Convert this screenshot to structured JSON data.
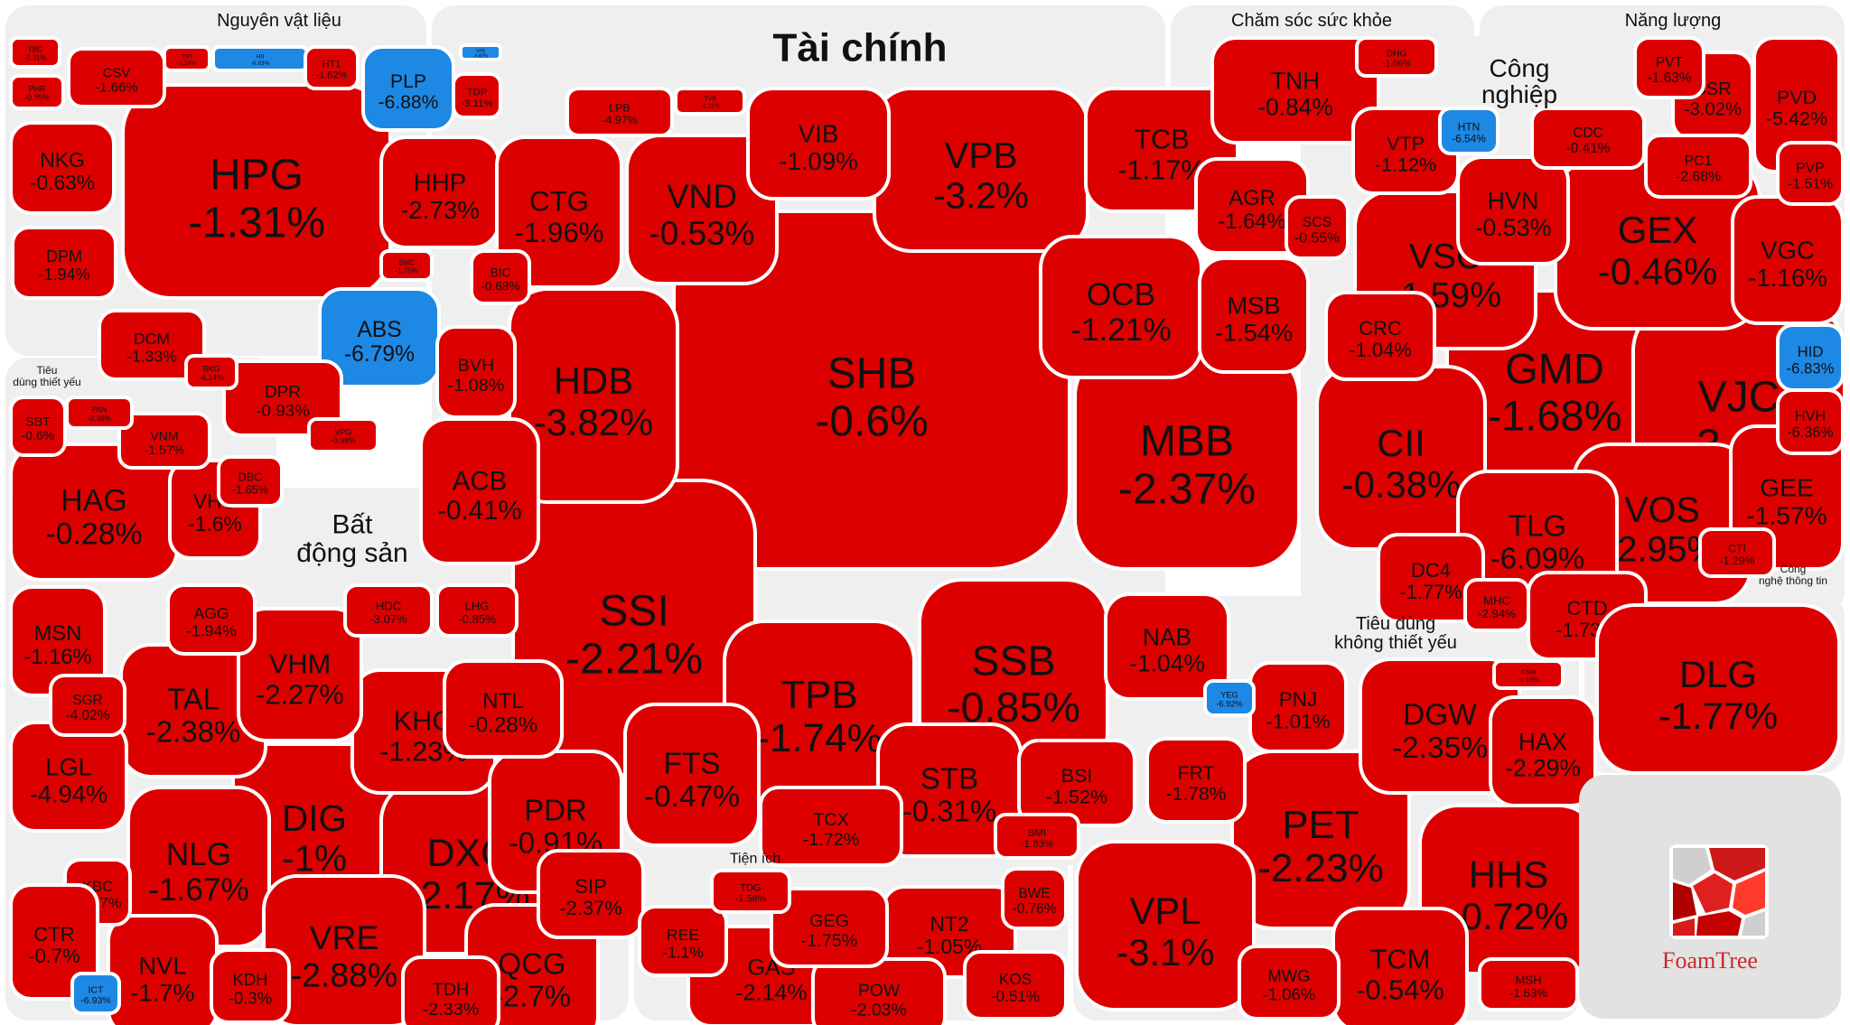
{
  "chart_data": {
    "type": "treemap",
    "colors": {
      "down": "#dd0000",
      "limit_down": "#1e88e5",
      "border": "#ffffff",
      "group_bg": "#efefef"
    },
    "groups": [
      {
        "name": "Nguyên vật liệu",
        "items": [
          [
            "HPG",
            -1.31
          ],
          [
            "ABS",
            -6.79
          ],
          [
            "PLP",
            -6.88
          ],
          [
            "HII",
            -6.93
          ],
          [
            "VPS",
            -6.82
          ],
          [
            "CSV",
            -1.66
          ],
          [
            "NKG",
            -0.63
          ],
          [
            "DPM",
            -1.94
          ],
          [
            "HHP",
            -2.73
          ],
          [
            "DCM",
            -1.33
          ],
          [
            "DPR",
            -0.93
          ],
          [
            "PHR",
            -0.35
          ],
          [
            "HT1",
            -1.62
          ],
          [
            "TDP",
            -3.11
          ],
          [
            "BKG",
            -4.14
          ],
          [
            "SMC",
            -1.75
          ],
          [
            "VPG",
            -0.98
          ],
          [
            "TNT",
            -1.24
          ],
          [
            "TBC",
            -0.31
          ]
        ]
      },
      {
        "name": "Tài chính",
        "items": [
          [
            "SHB",
            -0.6
          ],
          [
            "MBB",
            -2.37
          ],
          [
            "SSI",
            -2.21
          ],
          [
            "VPB",
            -3.2
          ],
          [
            "HDB",
            -3.82
          ],
          [
            "SSB",
            -0.85
          ],
          [
            "OCB",
            -1.21
          ],
          [
            "TPB",
            -1.74
          ],
          [
            "VND",
            -0.53
          ],
          [
            "STB",
            -0.31
          ],
          [
            "CTG",
            -1.96
          ],
          [
            "ACB",
            -0.41
          ],
          [
            "TCB",
            -1.17
          ],
          [
            "VIB",
            -1.09
          ],
          [
            "FTS",
            -0.47
          ],
          [
            "MSB",
            -1.54
          ],
          [
            "AGR",
            -1.64
          ],
          [
            "NAB",
            -1.04
          ],
          [
            "TCX",
            -1.72
          ],
          [
            "LPB",
            -4.97
          ],
          [
            "BSI",
            -1.52
          ],
          [
            "BVH",
            -1.08
          ],
          [
            "BMI",
            -1.83
          ],
          [
            "BIC",
            -0.68
          ],
          [
            "TVB",
            -4.11
          ]
        ]
      },
      {
        "name": "Chăm sóc sức khỏe",
        "items": [
          [
            "TNH",
            -0.84
          ],
          [
            "DHG",
            -1.06
          ]
        ]
      },
      {
        "name": "Năng lượng",
        "items": [
          [
            "PVD",
            -5.42
          ],
          [
            "BSR",
            -3.02
          ],
          [
            "PVT",
            -1.63
          ]
        ]
      },
      {
        "name": "Công nghiệp",
        "items": [
          [
            "GMD",
            -1.68
          ],
          [
            "VJC",
            -3.1
          ],
          [
            "GEX",
            -0.46
          ],
          [
            "VOS",
            -2.95
          ],
          [
            "VSC",
            -1.59
          ],
          [
            "VGC",
            -1.16
          ],
          [
            "CII",
            -0.38
          ],
          [
            "TLG",
            -6.09
          ],
          [
            "GEE",
            -1.57
          ],
          [
            "HVN",
            -0.53
          ],
          [
            "VTP",
            -1.12
          ],
          [
            "CRC",
            -1.04
          ],
          [
            "CTD",
            -1.73
          ],
          [
            "DC4",
            -1.77
          ],
          [
            "CDC",
            -0.41
          ],
          [
            "PC1",
            -2.68
          ],
          [
            "HID",
            -6.83
          ],
          [
            "CTI",
            -1.29
          ],
          [
            "SCS",
            -0.55
          ],
          [
            "HVH",
            -6.36
          ],
          [
            "HTN",
            -6.54
          ],
          [
            "PVP",
            -1.51
          ],
          [
            "MHC",
            -2.94
          ]
        ]
      },
      {
        "name": "Tiêu dùng thiết yếu",
        "items": [
          [
            "HAG",
            -0.28
          ],
          [
            "VHC",
            -1.6
          ],
          [
            "MSN",
            -1.16
          ],
          [
            "SBT",
            -0.6
          ],
          [
            "VNM",
            -1.57
          ],
          [
            "PAN",
            -2.38
          ],
          [
            "DBC",
            -1.65
          ]
        ]
      },
      {
        "name": "Bất động sản",
        "items": [
          [
            "DIG",
            -1.0
          ],
          [
            "DXG",
            -2.17
          ],
          [
            "NLG",
            -1.67
          ],
          [
            "VRE",
            -2.88
          ],
          [
            "TAL",
            -2.38
          ],
          [
            "KHG",
            -1.23
          ],
          [
            "VHM",
            -2.27
          ],
          [
            "QCG",
            -2.7
          ],
          [
            "PDR",
            -0.91
          ],
          [
            "LGL",
            -4.94
          ],
          [
            "NVL",
            -1.7
          ],
          [
            "SIP",
            -2.37
          ],
          [
            "AGG",
            -1.94
          ],
          [
            "TDH",
            -2.33
          ],
          [
            "KDH",
            -0.3
          ],
          [
            "NTL",
            -0.28
          ],
          [
            "HDC",
            -3.07
          ],
          [
            "LHG",
            -0.85
          ],
          [
            "SGR",
            -4.02
          ],
          [
            "KBC",
            -1.47
          ],
          [
            "CTR",
            -0.7
          ],
          [
            "ICT",
            -6.93
          ]
        ]
      },
      {
        "name": "Tiện ích",
        "items": [
          [
            "GAS",
            -2.14
          ],
          [
            "NT2",
            -1.05
          ],
          [
            "POW",
            -2.03
          ],
          [
            "GEG",
            -1.75
          ],
          [
            "KOS",
            -0.51
          ],
          [
            "REE",
            -1.1
          ],
          [
            "TDG",
            -1.58
          ],
          [
            "BWE",
            -0.76
          ]
        ]
      },
      {
        "name": "Tiêu dùng không thiết yếu",
        "items": [
          [
            "PET",
            -2.23
          ],
          [
            "VPL",
            -3.1
          ],
          [
            "DGW",
            -2.35
          ],
          [
            "HHS",
            -0.72
          ],
          [
            "TCM",
            -0.54
          ],
          [
            "PNJ",
            -1.01
          ],
          [
            "HAX",
            -2.29
          ],
          [
            "FRT",
            -1.78
          ],
          [
            "MWG",
            -1.06
          ],
          [
            "MSH",
            -1.63
          ],
          [
            "CSM",
            -1.19
          ],
          [
            "YEG",
            -6.92
          ]
        ]
      },
      {
        "name": "Công nghệ thông tin",
        "items": [
          [
            "DLG",
            -1.77
          ]
        ]
      }
    ],
    "brand": "FoamTree"
  }
}
